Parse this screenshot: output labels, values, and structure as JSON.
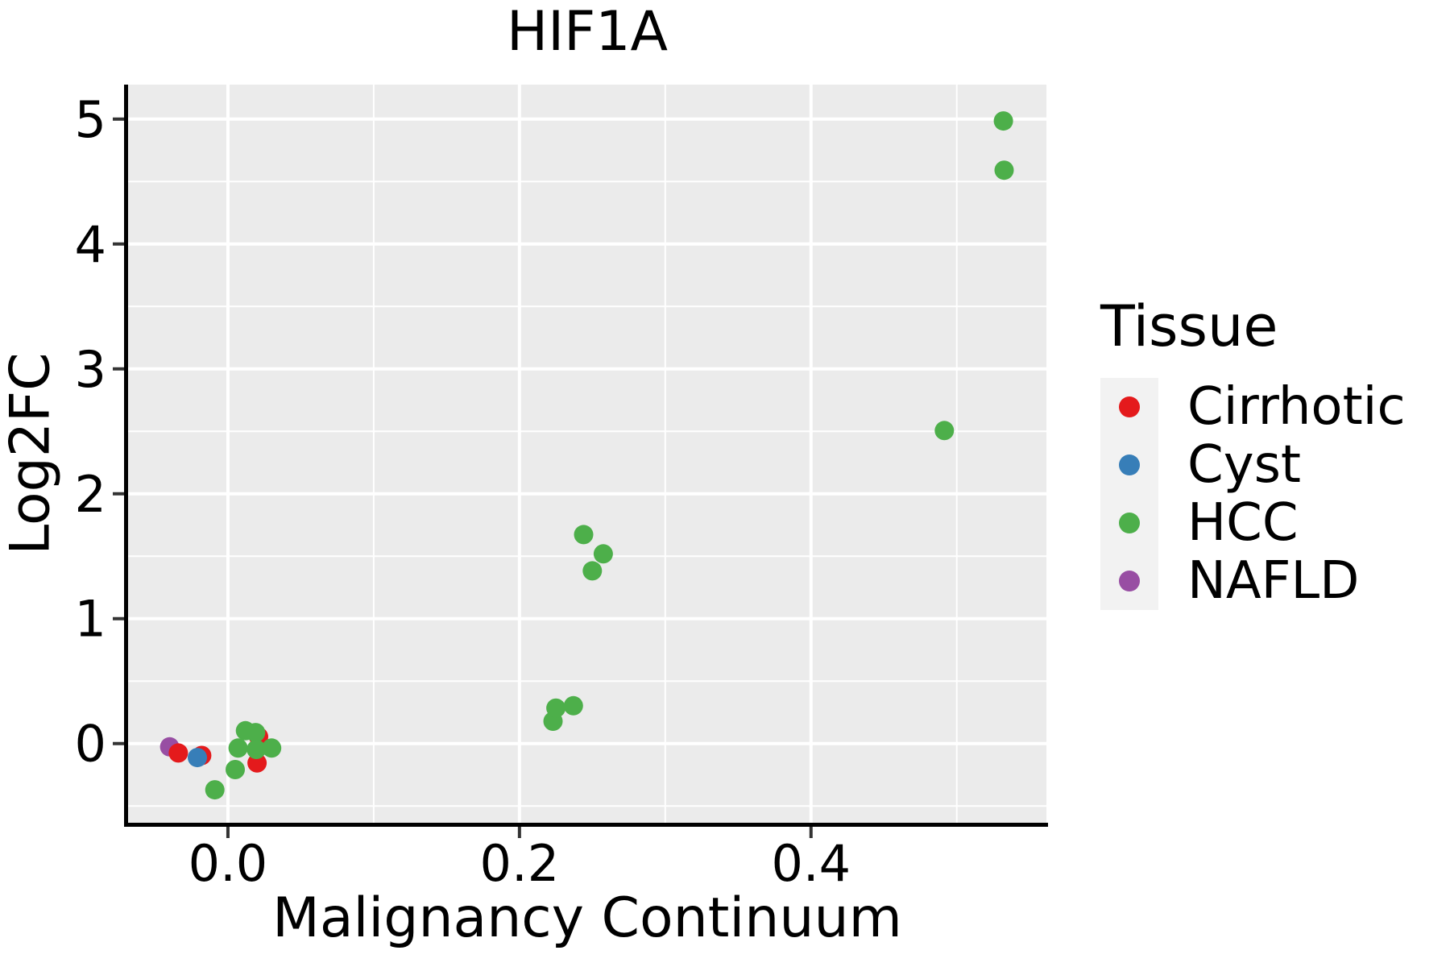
{
  "chart_data": {
    "type": "scatter",
    "title": "HIF1A",
    "xlabel": "Malignancy Continuum",
    "ylabel": "Log2FC",
    "xlim": [
      -0.0685,
      0.5615
    ],
    "ylim": [
      -0.634,
      5.276
    ],
    "x_ticks": {
      "values": [
        0.0,
        0.2,
        0.4
      ],
      "labels": [
        "0.0",
        "0.2",
        "0.4"
      ]
    },
    "x_minor_gridlines": [
      0.1,
      0.3,
      0.5
    ],
    "y_ticks": {
      "values": [
        0,
        1,
        2,
        3,
        4,
        5
      ],
      "labels": [
        "0",
        "1",
        "2",
        "3",
        "4",
        "5"
      ]
    },
    "y_minor_gridlines": [
      -0.5,
      0.5,
      1.5,
      2.5,
      3.5,
      4.5
    ],
    "grid": true,
    "panel_background": "#EBEBEB",
    "gridline_color": "#FFFFFF",
    "axis_line_color": "#000000",
    "tick_mark_color": "#333333",
    "text_color": "#000000",
    "legend": {
      "title": "Tissue",
      "position": "right",
      "key_background": "#F2F2F2",
      "entries": [
        {
          "label": "Cirrhotic",
          "color": "#E41A1C"
        },
        {
          "label": "Cyst",
          "color": "#377EB8"
        },
        {
          "label": "HCC",
          "color": "#4DAF4A"
        },
        {
          "label": "NAFLD",
          "color": "#984EA3"
        }
      ]
    },
    "series": [
      {
        "name": "Cirrhotic",
        "color": "#E41A1C",
        "points": [
          [
            -0.034,
            -0.075
          ],
          [
            -0.018,
            -0.095
          ],
          [
            0.021,
            0.055
          ],
          [
            0.02,
            -0.155
          ]
        ]
      },
      {
        "name": "Cyst",
        "color": "#377EB8",
        "points": [
          [
            -0.021,
            -0.112
          ]
        ]
      },
      {
        "name": "HCC",
        "color": "#4DAF4A",
        "points": [
          [
            0.012,
            0.103
          ],
          [
            0.019,
            0.088
          ],
          [
            0.007,
            -0.036
          ],
          [
            0.0195,
            -0.047
          ],
          [
            0.03,
            -0.036
          ],
          [
            0.005,
            -0.208
          ],
          [
            -0.009,
            -0.37
          ],
          [
            0.223,
            0.179
          ],
          [
            0.225,
            0.284
          ],
          [
            0.237,
            0.303
          ],
          [
            0.244,
            1.673
          ],
          [
            0.2575,
            1.519
          ],
          [
            0.25,
            1.383
          ],
          [
            0.4915,
            2.506
          ],
          [
            0.532,
            4.985
          ],
          [
            0.5325,
            4.591
          ]
        ]
      },
      {
        "name": "NAFLD",
        "color": "#984EA3",
        "points": [
          [
            -0.04,
            -0.026
          ]
        ]
      }
    ],
    "draw_order": [
      "NAFLD",
      "Cirrhotic",
      "Cyst",
      "HCC"
    ]
  }
}
